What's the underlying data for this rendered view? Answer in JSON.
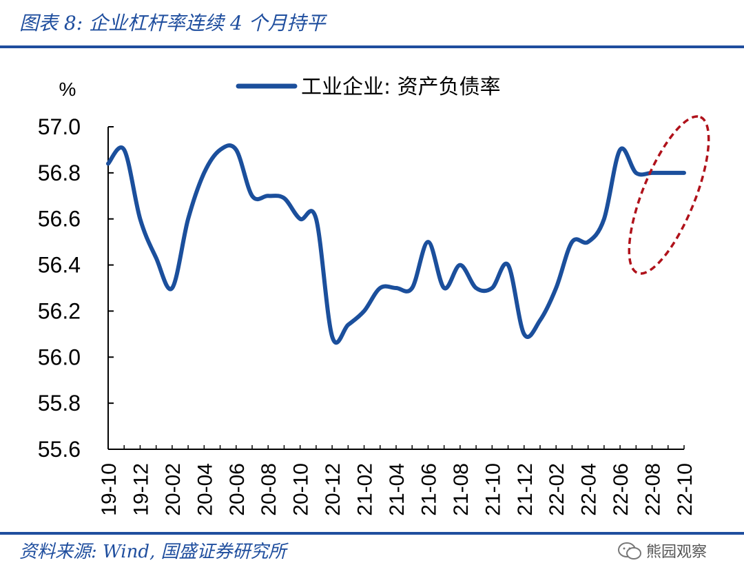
{
  "header": {
    "title": "图表 8:  企业杠杆率连续 4 个月持平"
  },
  "footer": {
    "source": "资料来源:  Wind, 国盛证券研究所",
    "watermark": "熊园观察"
  },
  "colors": {
    "accent": "#1f4e9e",
    "series": "#1b4f9c",
    "ellipse": "#b0121b"
  },
  "chart_data": {
    "type": "line",
    "ylabel": "%",
    "ylim": [
      55.6,
      57.0
    ],
    "yticks": [
      "57.0",
      "56.8",
      "56.6",
      "56.4",
      "56.2",
      "56.0",
      "55.8",
      "55.6"
    ],
    "ytick_values": [
      57.0,
      56.8,
      56.6,
      56.4,
      56.2,
      56.0,
      55.8,
      55.6
    ],
    "x": [
      "19-10",
      "19-11",
      "19-12",
      "20-01",
      "20-02",
      "20-03",
      "20-04",
      "20-05",
      "20-06",
      "20-07",
      "20-08",
      "20-09",
      "20-10",
      "20-11",
      "20-12",
      "21-01",
      "21-02",
      "21-03",
      "21-04",
      "21-05",
      "21-06",
      "21-07",
      "21-08",
      "21-09",
      "21-10",
      "21-11",
      "21-12",
      "22-01",
      "22-02",
      "22-03",
      "22-04",
      "22-05",
      "22-06",
      "22-07",
      "22-08",
      "22-09",
      "22-10"
    ],
    "xtick_labels": [
      "19-10",
      "19-12",
      "20-02",
      "20-04",
      "20-06",
      "20-08",
      "20-10",
      "20-12",
      "21-02",
      "21-04",
      "21-06",
      "21-08",
      "21-10",
      "21-12",
      "22-02",
      "22-04",
      "22-06",
      "22-08",
      "22-10"
    ],
    "series": [
      {
        "name": "工业企业: 资产负债率",
        "values": [
          56.84,
          56.9,
          56.6,
          56.43,
          56.3,
          56.6,
          56.8,
          56.9,
          56.9,
          56.7,
          56.7,
          56.69,
          56.6,
          56.6,
          56.09,
          56.14,
          56.2,
          56.3,
          56.3,
          56.3,
          56.5,
          56.3,
          56.4,
          56.3,
          56.3,
          56.4,
          56.1,
          56.16,
          56.3,
          56.5,
          56.5,
          56.6,
          56.9,
          56.8,
          56.8,
          56.8,
          56.8
        ]
      }
    ],
    "legend_position": "top-center",
    "grid": false,
    "annotation": "dashed ellipse highlighting last four months"
  }
}
